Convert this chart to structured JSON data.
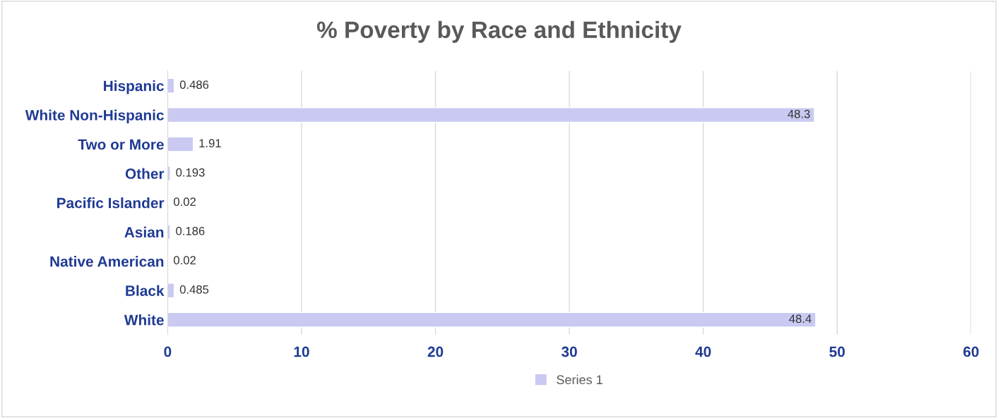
{
  "chart_data": {
    "type": "bar",
    "orientation": "horizontal",
    "title": "% Poverty by Race and Ethnicity",
    "categories": [
      "Hispanic",
      "White Non-Hispanic",
      "Two or More",
      "Other",
      "Pacific Islander",
      "Asian",
      "Native American",
      "Black",
      "White"
    ],
    "series": [
      {
        "name": "Series 1",
        "color": "#c9c9f2",
        "values": [
          0.486,
          48.3,
          1.91,
          0.193,
          0.02,
          0.186,
          0.02,
          0.485,
          48.4
        ]
      }
    ],
    "xlim": [
      0,
      60
    ],
    "xticks": [
      0,
      10,
      20,
      30,
      40,
      50,
      60
    ],
    "grid": "x",
    "legend": "bottom",
    "data_labels": true
  }
}
